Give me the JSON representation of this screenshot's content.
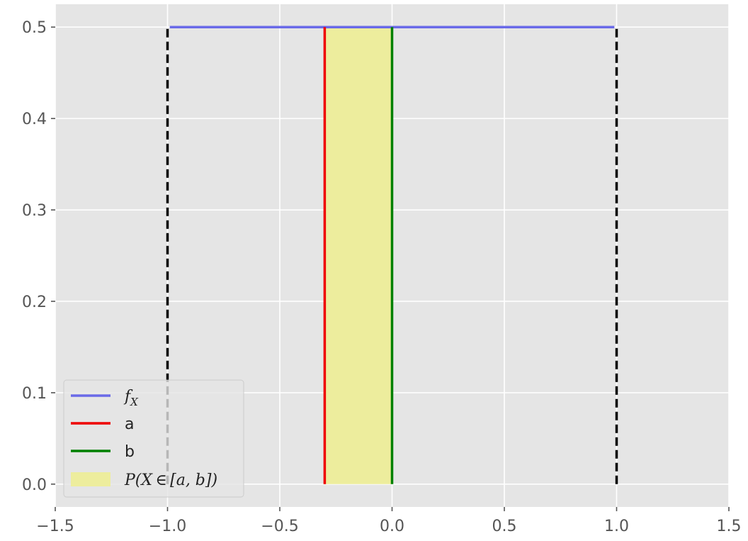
{
  "chart_data": {
    "type": "line",
    "title": "",
    "xlabel": "",
    "ylabel": "",
    "xlim": [
      -1.5,
      1.5
    ],
    "ylim": [
      -0.025,
      0.525
    ],
    "grid": true,
    "legend_position": "lower-left",
    "x_ticks": [
      {
        "value": -1.5,
        "label": "−1.5"
      },
      {
        "value": -1.0,
        "label": "−1.0"
      },
      {
        "value": -0.5,
        "label": "−0.5"
      },
      {
        "value": 0.0,
        "label": "0.0"
      },
      {
        "value": 0.5,
        "label": "0.5"
      },
      {
        "value": 1.0,
        "label": "1.0"
      },
      {
        "value": 1.5,
        "label": "1.5"
      }
    ],
    "y_ticks": [
      {
        "value": 0.0,
        "label": "0.0"
      },
      {
        "value": 0.1,
        "label": "0.1"
      },
      {
        "value": 0.2,
        "label": "0.2"
      },
      {
        "value": 0.3,
        "label": "0.3"
      },
      {
        "value": 0.4,
        "label": "0.4"
      },
      {
        "value": 0.5,
        "label": "0.5"
      }
    ],
    "series": [
      {
        "name": "f_X",
        "kind": "line",
        "color": "#6a6ae8",
        "x": [
          -0.99,
          0.99
        ],
        "y": [
          0.5,
          0.5
        ]
      },
      {
        "name": "a",
        "kind": "vline",
        "color": "#ee0000",
        "x": [
          -0.3,
          -0.3
        ],
        "y": [
          0.0,
          0.5
        ]
      },
      {
        "name": "b",
        "kind": "vline",
        "color": "#008000",
        "x": [
          0.0,
          0.0
        ],
        "y": [
          0.0,
          0.5
        ]
      },
      {
        "name": "P(X ∈ [a, b])",
        "kind": "fill",
        "color": "#eded9d",
        "x": [
          -0.3,
          0.0
        ],
        "y": [
          0.0,
          0.5
        ]
      }
    ],
    "boundaries": [
      {
        "kind": "dashed-vline",
        "color": "#000000",
        "x": [
          -1.0,
          -1.0
        ],
        "y": [
          0.0,
          0.5
        ]
      },
      {
        "kind": "dashed-vline",
        "color": "#000000",
        "x": [
          1.0,
          1.0
        ],
        "y": [
          0.0,
          0.5
        ]
      }
    ],
    "legend": [
      {
        "key": "fx",
        "text": "f",
        "sub": "X",
        "math": true
      },
      {
        "key": "a",
        "text": "a",
        "math": false
      },
      {
        "key": "b",
        "text": "b",
        "math": false
      },
      {
        "key": "p",
        "text": "P(X ∈ [a, b])",
        "math": true
      }
    ],
    "colors": {
      "plot_background": "#e5e5e5",
      "grid": "#ffffff",
      "axis": "#555555",
      "legend_background": "#e5e5e5"
    }
  }
}
